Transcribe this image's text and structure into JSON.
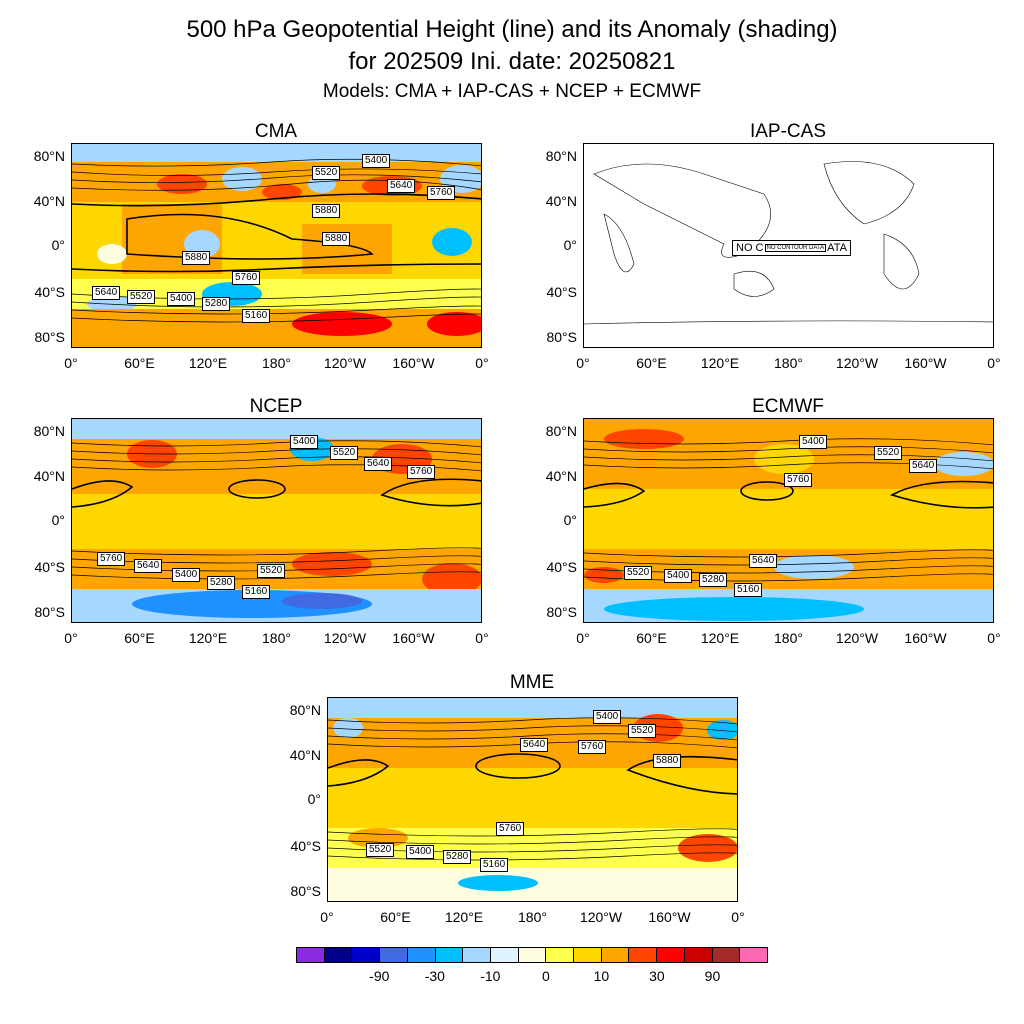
{
  "title": {
    "line1": "500 hPa Geopotential Height (line) and its Anomaly (shading)",
    "line2": "for 202509 Ini. date: 20250821",
    "line3": "Models: CMA + IAP-CAS + NCEP + ECMWF"
  },
  "panels": {
    "cma": {
      "name": "CMA",
      "labels": [
        "5400",
        "5520",
        "5640",
        "5760",
        "5880",
        "5880",
        "5880",
        "5760",
        "5640",
        "5520",
        "5400",
        "5280",
        "5160"
      ]
    },
    "iap": {
      "name": "IAP-CAS",
      "nodata": "NO C",
      "nodata_inner": "NO CONTOUR DATA",
      "nodata_end": "ATA"
    },
    "ncep": {
      "name": "NCEP",
      "labels": [
        "5400",
        "5520",
        "5640",
        "5760",
        "5760",
        "5640",
        "5400",
        "5280",
        "5160",
        "5520"
      ]
    },
    "ecmwf": {
      "name": "ECMWF",
      "labels": [
        "5400",
        "5520",
        "5640",
        "5760",
        "5640",
        "5520",
        "5400",
        "5280",
        "5160"
      ]
    },
    "mme": {
      "name": "MME",
      "labels": [
        "5400",
        "5520",
        "5640",
        "5760",
        "5880",
        "5760",
        "5520",
        "5400",
        "5280",
        "5160"
      ]
    }
  },
  "axes": {
    "lat_ticks": [
      "80°N",
      "40°N",
      "0°",
      "40°S",
      "80°S"
    ],
    "lon_ticks": [
      "0°",
      "60°E",
      "120°E",
      "180°",
      "120°W",
      "160°W",
      "0°"
    ]
  },
  "colorbar": {
    "colors": [
      "#8a2be2",
      "#00008b",
      "#0000cd",
      "#4169e1",
      "#1e90ff",
      "#00bfff",
      "#a6d8ff",
      "#dff4ff",
      "#fffde0",
      "#ffff4d",
      "#ffd700",
      "#ffa500",
      "#ff4500",
      "#ff0000",
      "#cd0000",
      "#a52a2a",
      "#ff69b4"
    ],
    "labels": [
      "-90",
      "-30",
      "-10",
      "0",
      "10",
      "30",
      "90"
    ]
  }
}
